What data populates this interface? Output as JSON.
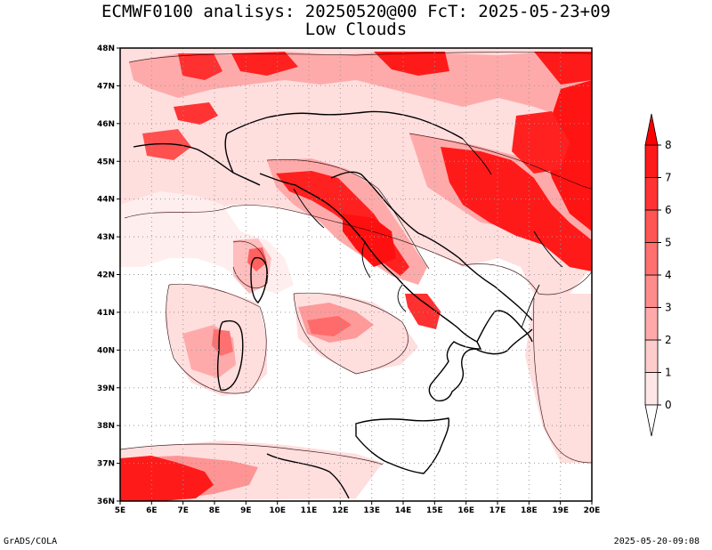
{
  "title": {
    "line1": "ECMWF0100 analisys: 20250520@00 FcT: 2025-05-23+09",
    "line2": "Low Clouds"
  },
  "map": {
    "projection": "lat-lon",
    "lon_range": [
      5,
      20
    ],
    "lat_range": [
      36,
      48
    ],
    "lon_ticks": [
      "5E",
      "6E",
      "7E",
      "8E",
      "9E",
      "10E",
      "11E",
      "12E",
      "13E",
      "14E",
      "15E",
      "16E",
      "17E",
      "18E",
      "19E",
      "20E"
    ],
    "lat_ticks": [
      "36N",
      "37N",
      "38N",
      "39N",
      "40N",
      "41N",
      "42N",
      "43N",
      "44N",
      "45N",
      "46N",
      "47N",
      "48N"
    ],
    "grid": "dotted",
    "field": "low cloud cover (oktas)"
  },
  "colorbar": {
    "labels": [
      "0",
      "1",
      "2",
      "3",
      "4",
      "5",
      "6",
      "7",
      "8"
    ],
    "colors": [
      "#ffe6e6",
      "#ffcccc",
      "#ffaaaa",
      "#ff8c8c",
      "#ff7070",
      "#ff5555",
      "#ff3333",
      "#ff1a1a",
      "#ff0000"
    ]
  },
  "footer": {
    "left": "GrADS/COLA",
    "right": "2025-05-20-09:08"
  }
}
